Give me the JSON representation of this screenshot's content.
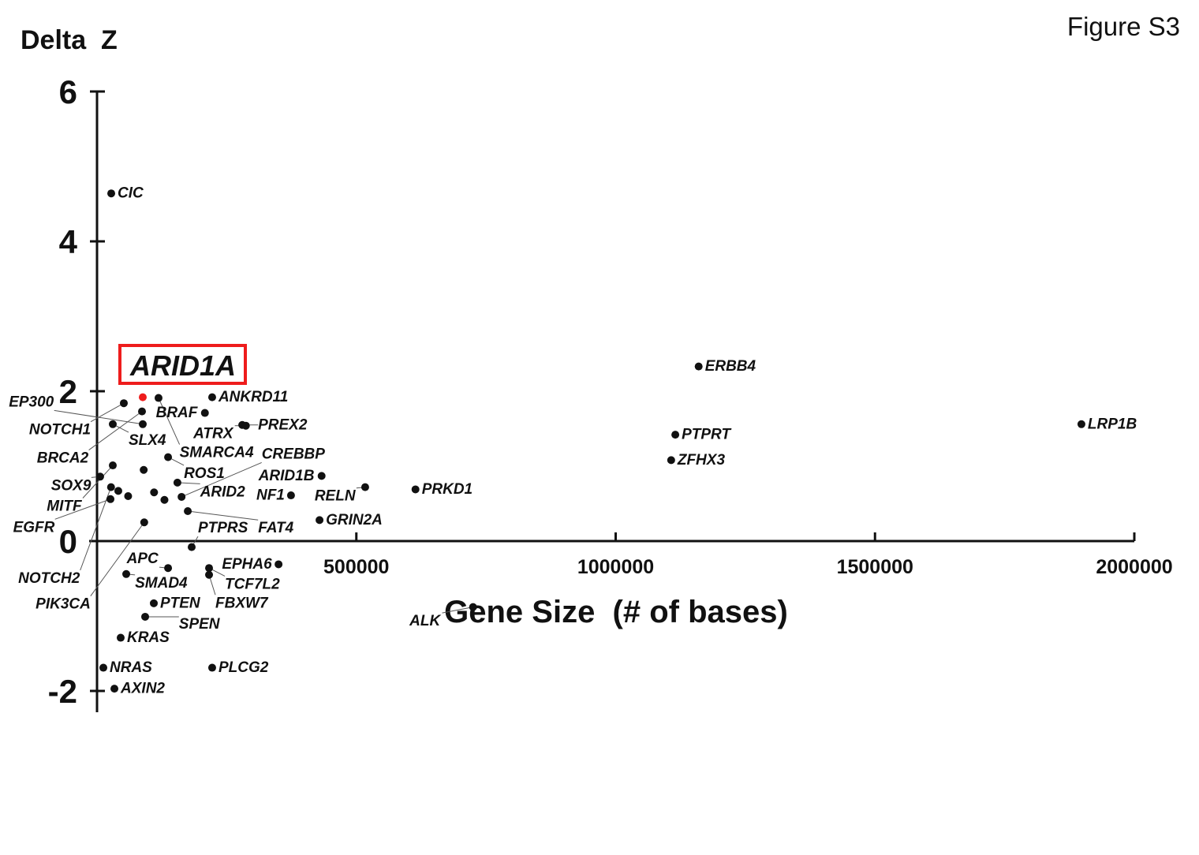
{
  "figure_label": "Figure S3",
  "chart_data": {
    "type": "scatter",
    "ylabel": "Delta  Z",
    "xlabel": "Gene Size  (# of bases)",
    "xlim": [
      0,
      2000000
    ],
    "ylim": [
      -2.3,
      6
    ],
    "x_ticks": [
      "500000",
      "1000000",
      "1500000",
      "2000000"
    ],
    "y_ticks": [
      "6",
      "4",
      "2",
      "0",
      "-2"
    ],
    "grid": false,
    "highlight": {
      "gene": "ARID1A",
      "color": "#ee1c1c"
    },
    "point_color": "#111111",
    "points": [
      {
        "gene": "CIC",
        "x": 27400,
        "y": 4.64
      },
      {
        "gene": "ARID1A",
        "x": 88200,
        "y": 1.92
      },
      {
        "gene": "SMARCA4",
        "x": 118600,
        "y": 1.91
      },
      {
        "gene": "ANKRD11",
        "x": 222000,
        "y": 1.92
      },
      {
        "gene": "NOTCH1",
        "x": 51700,
        "y": 1.84
      },
      {
        "gene": "BRCA2",
        "x": 86700,
        "y": 1.73
      },
      {
        "gene": "SLX4",
        "x": 30400,
        "y": 1.56
      },
      {
        "gene": "EP300",
        "x": 88200,
        "y": 1.56
      },
      {
        "gene": "BRAF",
        "x": 208000,
        "y": 1.71
      },
      {
        "gene": "PREX2",
        "x": 280000,
        "y": 1.55
      },
      {
        "gene": "ATRX",
        "x": 287000,
        "y": 1.54
      },
      {
        "gene": "ROS1",
        "x": 137000,
        "y": 1.12
      },
      {
        "gene": "MITF",
        "x": 30400,
        "y": 1.01
      },
      {
        "gene": "SOX9",
        "x": 6000,
        "y": 0.86
      },
      {
        "gene": "NOTCH2",
        "x": 27000,
        "y": 0.72
      },
      {
        "gene": "EGFR",
        "x": 25900,
        "y": 0.56
      },
      {
        "gene": "",
        "x": 41000,
        "y": 0.67
      },
      {
        "gene": "",
        "x": 60000,
        "y": 0.6
      },
      {
        "gene": "",
        "x": 90000,
        "y": 0.95
      },
      {
        "gene": "",
        "x": 110000,
        "y": 0.65
      },
      {
        "gene": "",
        "x": 130000,
        "y": 0.55
      },
      {
        "gene": "ARID2",
        "x": 155000,
        "y": 0.78
      },
      {
        "gene": "CREBBP",
        "x": 163000,
        "y": 0.59
      },
      {
        "gene": "PIK3CA",
        "x": 91000,
        "y": 0.25
      },
      {
        "gene": "FAT4",
        "x": 175000,
        "y": 0.4
      },
      {
        "gene": "NF1",
        "x": 374000,
        "y": 0.61
      },
      {
        "gene": "ARID1B",
        "x": 433000,
        "y": 0.87
      },
      {
        "gene": "RELN",
        "x": 517000,
        "y": 0.72
      },
      {
        "gene": "PRKD1",
        "x": 614000,
        "y": 0.69
      },
      {
        "gene": "GRIN2A",
        "x": 429000,
        "y": 0.28
      },
      {
        "gene": "ERBB4",
        "x": 1160000,
        "y": 2.33
      },
      {
        "gene": "LRP1B",
        "x": 1898000,
        "y": 1.56
      },
      {
        "gene": "PTPRT",
        "x": 1115000,
        "y": 1.42
      },
      {
        "gene": "ZFHX3",
        "x": 1107000,
        "y": 1.08
      },
      {
        "gene": "PTPRS",
        "x": 182500,
        "y": -0.08
      },
      {
        "gene": "SMAD4",
        "x": 56300,
        "y": -0.44
      },
      {
        "gene": "APC",
        "x": 137000,
        "y": -0.36
      },
      {
        "gene": "TCF7L2",
        "x": 216000,
        "y": -0.36
      },
      {
        "gene": "FBXW7",
        "x": 216000,
        "y": -0.45
      },
      {
        "gene": "EPHA6",
        "x": 350000,
        "y": -0.31
      },
      {
        "gene": "PTEN",
        "x": 109500,
        "y": -0.83
      },
      {
        "gene": "SPEN",
        "x": 92800,
        "y": -1.01
      },
      {
        "gene": "KRAS",
        "x": 45600,
        "y": -1.29
      },
      {
        "gene": "ALK",
        "x": 725000,
        "y": -0.88
      },
      {
        "gene": "NRAS",
        "x": 12200,
        "y": -1.69
      },
      {
        "gene": "PLCG2",
        "x": 222000,
        "y": -1.69
      },
      {
        "gene": "AXIN2",
        "x": 33500,
        "y": -1.97
      }
    ]
  }
}
